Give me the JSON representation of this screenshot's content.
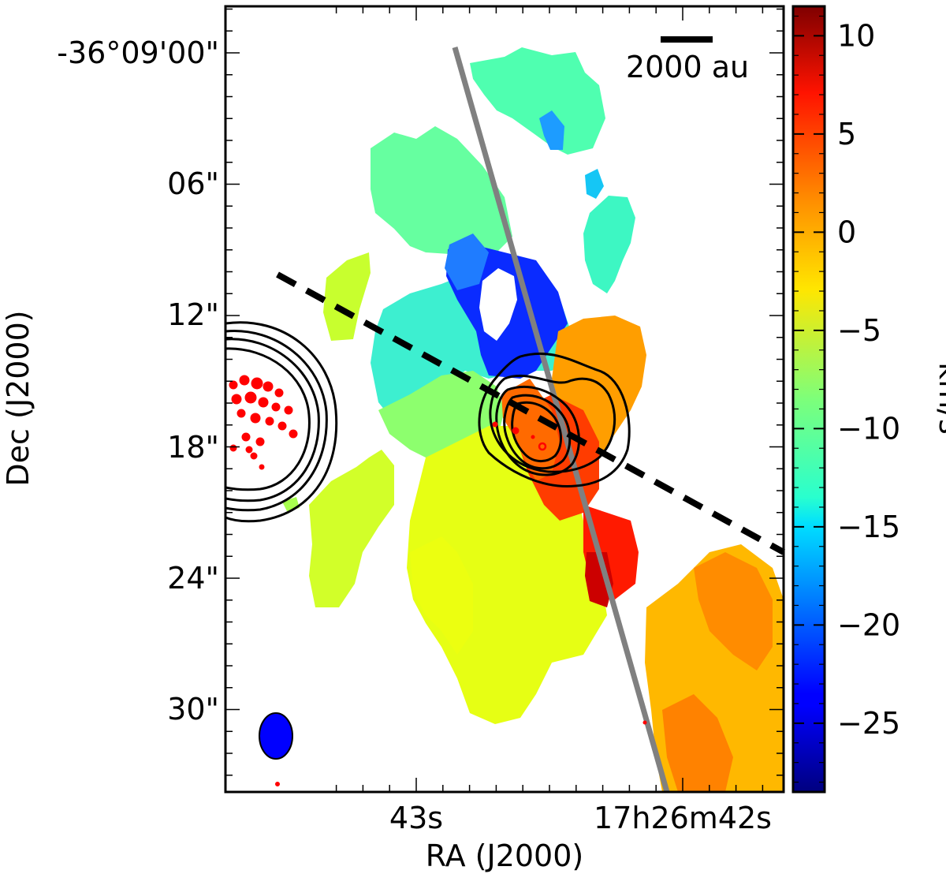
{
  "chart_data": {
    "type": "heatmap",
    "title": "",
    "xlabel": "RA (J2000)",
    "ylabel": "Dec (J2000)",
    "x_tick_labels": [
      "43s",
      "17h26m42s"
    ],
    "y_tick_labels": [
      "-36°09'00\"",
      "06\"",
      "12\"",
      "18\"",
      "24\"",
      "30\""
    ],
    "colorbar": {
      "label": "km/s",
      "range": [
        -28.5,
        11.5
      ],
      "tick_values": [
        10,
        5,
        0,
        -5,
        -10,
        -15,
        -20,
        -25
      ],
      "tick_labels": [
        "10",
        "5",
        "0",
        "−5",
        "−10",
        "−15",
        "−20",
        "−25"
      ],
      "colormap": "jet"
    },
    "scalebar_label": "2000 au",
    "annotations": [
      {
        "kind": "solid line",
        "color": "#808080",
        "description": "outflow axis"
      },
      {
        "kind": "dashed line",
        "color": "#000000"
      },
      {
        "kind": "black contours",
        "description": "two continuum sources"
      },
      {
        "kind": "red contours / dots",
        "color": "#ff0000"
      },
      {
        "kind": "beam ellipse",
        "color": "#0000ff",
        "position": "bottom-left"
      }
    ],
    "colors": {
      "frame": "#000000",
      "outflow_line": "#808080",
      "red_contours": "#ff0000",
      "beam": "#0000ff"
    }
  }
}
